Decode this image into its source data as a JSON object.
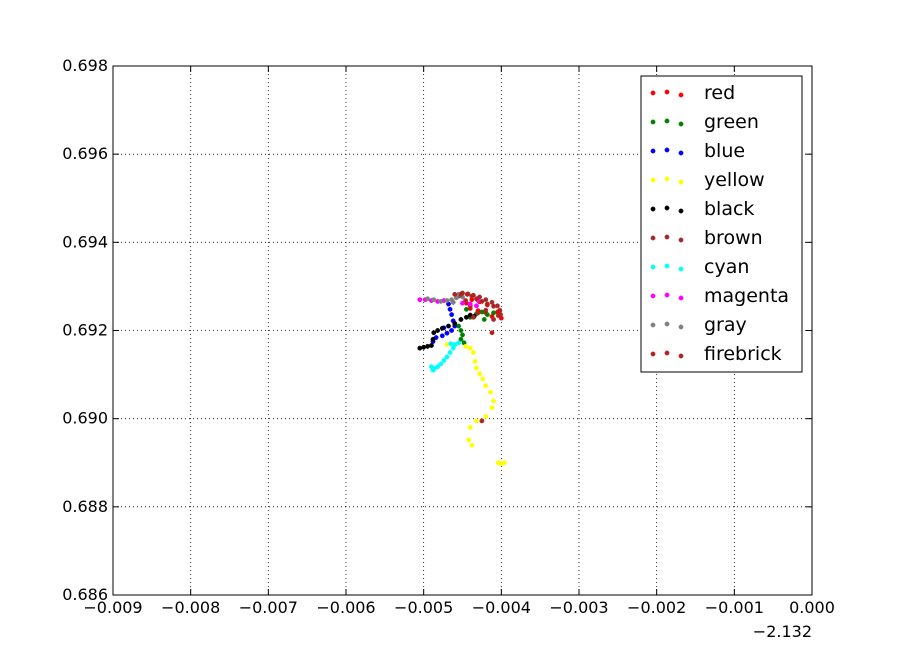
{
  "chart_data": {
    "type": "scatter",
    "title": "",
    "xlabel": "",
    "ylabel": "",
    "x_offset_label": "−2.132",
    "xlim": [
      -0.009,
      0.0
    ],
    "ylim": [
      0.686,
      0.698
    ],
    "x_ticks": [
      -0.009,
      -0.008,
      -0.007,
      -0.006,
      -0.005,
      -0.004,
      -0.003,
      -0.002,
      -0.001,
      0.0
    ],
    "x_tick_labels": [
      "−0.009",
      "−0.008",
      "−0.007",
      "−0.006",
      "−0.005",
      "−0.004",
      "−0.003",
      "−0.002",
      "−0.001",
      "0.000"
    ],
    "y_ticks": [
      0.686,
      0.688,
      0.69,
      0.692,
      0.694,
      0.696,
      0.698
    ],
    "y_tick_labels": [
      "0.686",
      "0.688",
      "0.690",
      "0.692",
      "0.694",
      "0.696",
      "0.698"
    ],
    "grid": true,
    "legend_position": "top-right",
    "series": [
      {
        "name": "red",
        "color": "#ff0000",
        "points": [
          [
            -0.0043,
            0.69245
          ],
          [
            -0.0042,
            0.6924
          ],
          [
            -0.00412,
            0.69232
          ],
          [
            -0.004,
            0.69228
          ],
          [
            -0.00405,
            0.69242
          ],
          [
            -0.00418,
            0.69258
          ],
          [
            -0.00428,
            0.69265
          ],
          [
            -0.00438,
            0.6927
          ],
          [
            -0.00445,
            0.69262
          ],
          [
            -0.0044,
            0.6925
          ]
        ]
      },
      {
        "name": "green",
        "color": "#008000",
        "points": [
          [
            -0.00455,
            0.6921
          ],
          [
            -0.00452,
            0.692
          ],
          [
            -0.0045,
            0.6919
          ],
          [
            -0.00452,
            0.6918
          ],
          [
            -0.00448,
            0.69172
          ],
          [
            -0.0044,
            0.6923
          ],
          [
            -0.00432,
            0.69238
          ],
          [
            -0.00425,
            0.69242
          ],
          [
            -0.00418,
            0.69236
          ],
          [
            -0.0041,
            0.6924
          ],
          [
            -0.00422,
            0.69225
          ],
          [
            -0.00445,
            0.69248
          ]
        ]
      },
      {
        "name": "blue",
        "color": "#0000ff",
        "points": [
          [
            -0.00468,
            0.6926
          ],
          [
            -0.00466,
            0.69248
          ],
          [
            -0.00464,
            0.69236
          ],
          [
            -0.00462,
            0.69222
          ],
          [
            -0.0046,
            0.6921
          ],
          [
            -0.00464,
            0.692
          ],
          [
            -0.0047,
            0.69194
          ],
          [
            -0.00476,
            0.69188
          ],
          [
            -0.00484,
            0.69184
          ],
          [
            -0.00488,
            0.69175
          ],
          [
            -0.00474,
            0.69206
          ]
        ]
      },
      {
        "name": "yellow",
        "color": "#ffff00",
        "points": [
          [
            -0.0047,
            0.69168
          ],
          [
            -0.0046,
            0.69166
          ],
          [
            -0.00446,
            0.69164
          ],
          [
            -0.0044,
            0.6916
          ],
          [
            -0.00436,
            0.6915
          ],
          [
            -0.00434,
            0.6913
          ],
          [
            -0.00432,
            0.69115
          ],
          [
            -0.00428,
            0.69102
          ],
          [
            -0.00424,
            0.6909
          ],
          [
            -0.0042,
            0.69075
          ],
          [
            -0.00414,
            0.6906
          ],
          [
            -0.0041,
            0.6904
          ],
          [
            -0.00412,
            0.69025
          ],
          [
            -0.0042,
            0.69005
          ],
          [
            -0.00432,
            0.68995
          ],
          [
            -0.0044,
            0.6898
          ],
          [
            -0.00442,
            0.68952
          ],
          [
            -0.00438,
            0.6894
          ],
          [
            -0.00404,
            0.689
          ],
          [
            -0.004,
            0.68898
          ],
          [
            -0.00396,
            0.689
          ]
        ]
      },
      {
        "name": "black",
        "color": "#000000",
        "points": [
          [
            -0.00505,
            0.6916
          ],
          [
            -0.005,
            0.69162
          ],
          [
            -0.00495,
            0.69164
          ],
          [
            -0.0049,
            0.69166
          ],
          [
            -0.00488,
            0.6918
          ],
          [
            -0.00487,
            0.69195
          ],
          [
            -0.00482,
            0.692
          ],
          [
            -0.00476,
            0.69205
          ],
          [
            -0.00468,
            0.6921
          ],
          [
            -0.0046,
            0.69216
          ],
          [
            -0.00452,
            0.69225
          ],
          [
            -0.00445,
            0.6923
          ],
          [
            -0.0044,
            0.69235
          ],
          [
            -0.00435,
            0.69232
          ]
        ]
      },
      {
        "name": "brown",
        "color": "#a52a2a",
        "points": [
          [
            -0.0045,
            0.69285
          ],
          [
            -0.00443,
            0.69283
          ],
          [
            -0.00436,
            0.6928
          ],
          [
            -0.00428,
            0.69276
          ],
          [
            -0.0042,
            0.6927
          ],
          [
            -0.00412,
            0.69264
          ],
          [
            -0.00405,
            0.69256
          ],
          [
            -0.00402,
            0.69246
          ],
          [
            -0.00404,
            0.69234
          ],
          [
            -0.0041,
            0.69225
          ],
          [
            -0.00455,
            0.69278
          ],
          [
            -0.00446,
            0.69268
          ],
          [
            -0.0044,
            0.69256
          ]
        ]
      },
      {
        "name": "cyan",
        "color": "#00ffff",
        "points": [
          [
            -0.00455,
            0.69172
          ],
          [
            -0.0046,
            0.69168
          ],
          [
            -0.00462,
            0.6916
          ],
          [
            -0.00466,
            0.6915
          ],
          [
            -0.0047,
            0.6914
          ],
          [
            -0.00474,
            0.69132
          ],
          [
            -0.00478,
            0.69124
          ],
          [
            -0.00482,
            0.69118
          ],
          [
            -0.00486,
            0.69114
          ],
          [
            -0.0049,
            0.69118
          ],
          [
            -0.00488,
            0.6911
          ],
          [
            -0.00465,
            0.6917
          ]
        ]
      },
      {
        "name": "magenta",
        "color": "#ff00ff",
        "points": [
          [
            -0.00505,
            0.6927
          ],
          [
            -0.00498,
            0.6927
          ],
          [
            -0.0049,
            0.69268
          ],
          [
            -0.00482,
            0.69266
          ],
          [
            -0.00474,
            0.69268
          ],
          [
            -0.00462,
            0.69264
          ],
          [
            -0.0045,
            0.69262
          ],
          [
            -0.0044,
            0.6926
          ],
          [
            -0.00432,
            0.69256
          ],
          [
            -0.0043,
            0.69268
          ]
        ]
      },
      {
        "name": "gray",
        "color": "#808080",
        "points": [
          [
            -0.00495,
            0.69272
          ],
          [
            -0.00487,
            0.6927
          ],
          [
            -0.00478,
            0.69266
          ],
          [
            -0.0047,
            0.69268
          ],
          [
            -0.00464,
            0.6927
          ],
          [
            -0.00458,
            0.69274
          ],
          [
            -0.00455,
            0.69282
          ],
          [
            -0.00462,
            0.69264
          ],
          [
            -0.0045,
            0.69276
          ]
        ]
      },
      {
        "name": "firebrick",
        "color": "#b22222",
        "points": [
          [
            -0.0046,
            0.69282
          ],
          [
            -0.00452,
            0.69282
          ],
          [
            -0.00444,
            0.69282
          ],
          [
            -0.00438,
            0.69278
          ],
          [
            -0.00432,
            0.69272
          ],
          [
            -0.00425,
            0.69266
          ],
          [
            -0.00418,
            0.6926
          ],
          [
            -0.0041,
            0.69255
          ],
          [
            -0.00402,
            0.69245
          ],
          [
            -0.00401,
            0.69236
          ],
          [
            -0.00412,
            0.69195
          ],
          [
            -0.0042,
            0.69246
          ],
          [
            -0.0043,
            0.6924
          ],
          [
            -0.00436,
            0.6923
          ],
          [
            -0.00425,
            0.68995
          ]
        ]
      }
    ]
  }
}
